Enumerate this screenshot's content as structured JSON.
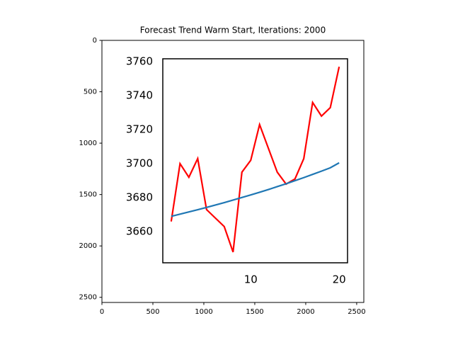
{
  "chart_data": [
    {
      "type": "image",
      "title": "Forecast Trend Warm Start, Iterations: 2000",
      "xlim": [
        0,
        2570
      ],
      "ylim": [
        2550,
        0
      ],
      "xticks": [
        0,
        500,
        1000,
        1500,
        2000,
        2500
      ],
      "yticks": [
        0,
        500,
        1000,
        1500,
        2000,
        2500
      ]
    },
    {
      "type": "line",
      "x": [
        1,
        2,
        3,
        4,
        5,
        6,
        7,
        8,
        9,
        10,
        11,
        12,
        13,
        14,
        15,
        16,
        17,
        18,
        19,
        20
      ],
      "series": [
        {
          "color": "#ff0000",
          "values": [
            3666,
            3700,
            3692,
            3703,
            3673,
            3668,
            3663,
            3648,
            3695,
            3702,
            3723,
            3709,
            3695,
            3688,
            3691,
            3703,
            3736,
            3728,
            3733,
            3757
          ]
        },
        {
          "color": "#1f77b4",
          "values": [
            3669,
            3670.3,
            3671.6,
            3672.9,
            3674.3,
            3675.7,
            3677.1,
            3678.6,
            3680.1,
            3681.6,
            3683.2,
            3684.8,
            3686.5,
            3688.2,
            3690,
            3691.8,
            3693.7,
            3695.6,
            3697.6,
            3700.5
          ]
        }
      ],
      "xlim": [
        0.05,
        20.95
      ],
      "ylim": [
        3641.7,
        3761.7
      ],
      "xticks": [
        10,
        20
      ],
      "yticks": [
        3660,
        3680,
        3700,
        3720,
        3740,
        3760
      ]
    }
  ]
}
